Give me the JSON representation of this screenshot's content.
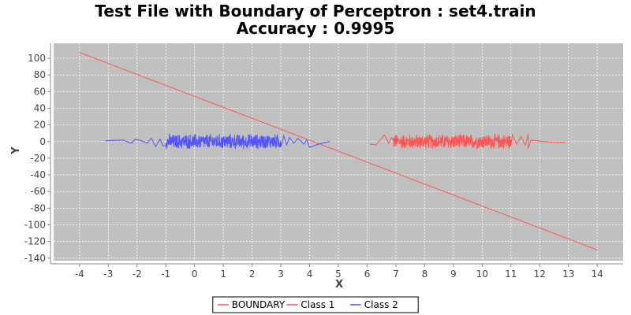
{
  "chart_data": {
    "type": "line",
    "title": "Test File with Boundary of Perceptron : set4.train",
    "subtitle": "Accuracy : 0.9995",
    "xlabel": "X",
    "ylabel": "Y",
    "xlim": [
      -4.9,
      14.9
    ],
    "ylim": [
      -143,
      118
    ],
    "x_ticks": [
      -4,
      -3,
      -2,
      -1,
      0,
      1,
      2,
      3,
      4,
      5,
      6,
      7,
      8,
      9,
      10,
      11,
      12,
      13,
      14
    ],
    "y_ticks": [
      100,
      80,
      60,
      40,
      20,
      0,
      -20,
      -40,
      -60,
      -80,
      -100,
      -120,
      -140
    ],
    "grid": true,
    "legend_position": "bottom-center",
    "plot_background": "#c0c0c0",
    "series": [
      {
        "name": "BOUNDARY",
        "color": "#ff5555",
        "x": [
          -4,
          14
        ],
        "y": [
          107,
          -130
        ]
      },
      {
        "name": "Class 1",
        "color": "#ff5555",
        "x_range": [
          6.1,
          12.9
        ],
        "dense_x_range": [
          6.9,
          11.0
        ],
        "amplitude": 10,
        "sparse_points": [
          [
            6.1,
            -3
          ],
          [
            6.3,
            -4
          ],
          [
            6.45,
            2
          ],
          [
            6.6,
            8
          ],
          [
            6.75,
            -2
          ],
          [
            6.85,
            5
          ],
          [
            11.05,
            8
          ],
          [
            11.2,
            -3
          ],
          [
            11.35,
            6
          ],
          [
            11.5,
            -4
          ],
          [
            11.6,
            8
          ],
          [
            11.7,
            2
          ],
          [
            11.6,
            -8
          ],
          [
            12.1,
            0
          ],
          [
            12.5,
            -1
          ],
          [
            12.9,
            -1
          ]
        ]
      },
      {
        "name": "Class 2",
        "color": "#5555ff",
        "x_range": [
          -3.1,
          4.7
        ],
        "dense_x_range": [
          -1.0,
          3.0
        ],
        "amplitude": 10,
        "sparse_points": [
          [
            -3.1,
            1
          ],
          [
            -2.5,
            2
          ],
          [
            -2.2,
            -2
          ],
          [
            -2.05,
            3
          ],
          [
            -1.85,
            1
          ],
          [
            -1.65,
            -2
          ],
          [
            -1.5,
            4
          ],
          [
            -1.35,
            -6
          ],
          [
            -1.2,
            3
          ],
          [
            -1.1,
            -5
          ],
          [
            3.1,
            7
          ],
          [
            3.2,
            -4
          ],
          [
            3.3,
            5
          ],
          [
            3.45,
            -2
          ],
          [
            3.6,
            4
          ],
          [
            3.8,
            -3
          ],
          [
            3.9,
            2
          ],
          [
            4.0,
            -7
          ],
          [
            4.3,
            -3
          ],
          [
            4.7,
            0
          ]
        ]
      }
    ]
  }
}
